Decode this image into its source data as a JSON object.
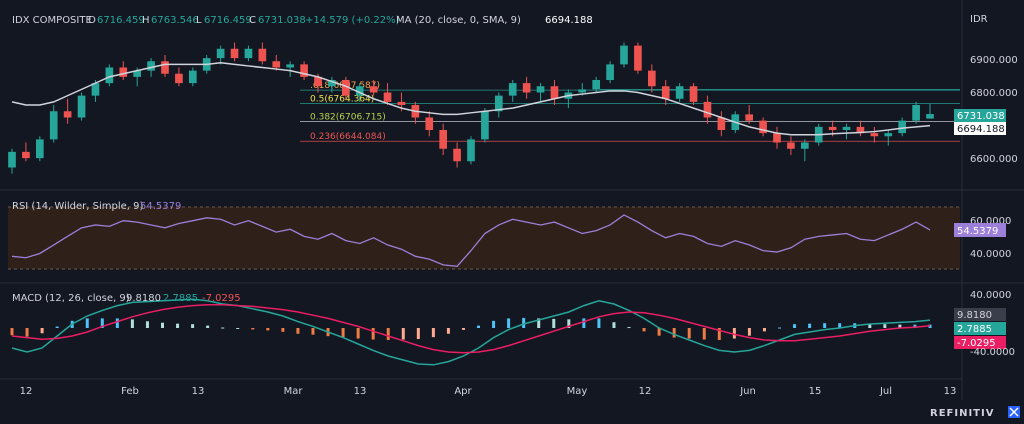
{
  "symbol": "IDX COMPOSITE",
  "ohlc": {
    "o_prefix": "O",
    "o": "6716.459",
    "h_prefix": "H",
    "h": "6763.546",
    "l_prefix": "L",
    "l": "6716.459",
    "c_prefix": "C",
    "c": "6731.038",
    "change": "+14.579 (+0.22%)"
  },
  "ma_legend": {
    "label": "MA (20, close, 0, SMA, 9)",
    "value": "6694.188"
  },
  "rsi_legend": {
    "label": "RSI (14, Wilder, Simple, 9)",
    "value": "54.5379"
  },
  "macd_legend": {
    "label": "MACD (12, 26, close, 9)",
    "v1": "9.8180",
    "v2": "2.7885",
    "v3": "-7.0295"
  },
  "currency": "IDR",
  "brand": "REFINITIV",
  "price_ticks": [
    "6900.000",
    "6800.000",
    "6600.000"
  ],
  "rsi_ticks": [
    "60.0000",
    "40.0000"
  ],
  "macd_ticks": [
    "40.0000",
    "-40.0000"
  ],
  "price_badges": {
    "close": "6731.038",
    "ma": "6694.188"
  },
  "rsi_badge": "54.5379",
  "macd_badges": {
    "v1": "9.8180",
    "v2": "2.7885",
    "v3": "-7.0295"
  },
  "fib_labels": [
    {
      "text": ".618(6807.587)",
      "color": "#f0a24a"
    },
    {
      "text": "0.5(6764.364)",
      "color": "#f0e24a"
    },
    {
      "text": "0.382(6706.715)",
      "color": "#b7d34a"
    },
    {
      "text": "0.236(6644.084)",
      "color": "#ef5350"
    }
  ],
  "x_ticks": [
    "12",
    "Feb",
    "13",
    "Mar",
    "13",
    "Apr",
    "May",
    "12",
    "Jun",
    "15",
    "Jul",
    "13"
  ],
  "colors": {
    "up": "#26a69a",
    "down": "#ef5350",
    "ma": "#d1d4dc",
    "rsi": "#9c7fd8",
    "macd": "#26a69a",
    "signal": "#e91e63",
    "bg": "#131722"
  },
  "chart_data": {
    "type": "candlestick",
    "price_range": [
      6520,
      7000
    ],
    "candles": [
      [
        6560,
        6620,
        6540,
        6610
      ],
      [
        6610,
        6640,
        6580,
        6590
      ],
      [
        6590,
        6660,
        6580,
        6650
      ],
      [
        6650,
        6760,
        6640,
        6740
      ],
      [
        6740,
        6780,
        6700,
        6720
      ],
      [
        6720,
        6800,
        6710,
        6790
      ],
      [
        6790,
        6840,
        6770,
        6830
      ],
      [
        6830,
        6890,
        6820,
        6880
      ],
      [
        6880,
        6900,
        6840,
        6850
      ],
      [
        6850,
        6880,
        6820,
        6870
      ],
      [
        6870,
        6910,
        6850,
        6900
      ],
      [
        6900,
        6920,
        6850,
        6860
      ],
      [
        6860,
        6880,
        6820,
        6830
      ],
      [
        6830,
        6880,
        6820,
        6870
      ],
      [
        6870,
        6920,
        6860,
        6910
      ],
      [
        6910,
        6950,
        6890,
        6940
      ],
      [
        6940,
        6960,
        6900,
        6910
      ],
      [
        6910,
        6950,
        6900,
        6940
      ],
      [
        6940,
        6960,
        6890,
        6900
      ],
      [
        6900,
        6920,
        6870,
        6880
      ],
      [
        6880,
        6900,
        6850,
        6890
      ],
      [
        6890,
        6900,
        6840,
        6850
      ],
      [
        6850,
        6860,
        6800,
        6820
      ],
      [
        6820,
        6850,
        6800,
        6840
      ],
      [
        6840,
        6850,
        6780,
        6790
      ],
      [
        6790,
        6830,
        6770,
        6820
      ],
      [
        6820,
        6840,
        6790,
        6800
      ],
      [
        6800,
        6830,
        6760,
        6770
      ],
      [
        6770,
        6800,
        6740,
        6760
      ],
      [
        6760,
        6770,
        6700,
        6720
      ],
      [
        6720,
        6740,
        6660,
        6680
      ],
      [
        6680,
        6700,
        6600,
        6620
      ],
      [
        6620,
        6640,
        6560,
        6580
      ],
      [
        6580,
        6660,
        6570,
        6650
      ],
      [
        6650,
        6750,
        6640,
        6740
      ],
      [
        6740,
        6800,
        6720,
        6790
      ],
      [
        6790,
        6840,
        6770,
        6830
      ],
      [
        6830,
        6850,
        6780,
        6800
      ],
      [
        6800,
        6830,
        6770,
        6820
      ],
      [
        6820,
        6840,
        6760,
        6780
      ],
      [
        6780,
        6810,
        6750,
        6800
      ],
      [
        6800,
        6830,
        6790,
        6810
      ],
      [
        6810,
        6850,
        6800,
        6840
      ],
      [
        6840,
        6900,
        6830,
        6890
      ],
      [
        6890,
        6960,
        6880,
        6950
      ],
      [
        6950,
        6960,
        6860,
        6870
      ],
      [
        6870,
        6890,
        6800,
        6820
      ],
      [
        6820,
        6840,
        6760,
        6780
      ],
      [
        6780,
        6830,
        6770,
        6820
      ],
      [
        6820,
        6830,
        6760,
        6770
      ],
      [
        6770,
        6790,
        6700,
        6720
      ],
      [
        6720,
        6740,
        6660,
        6680
      ],
      [
        6680,
        6740,
        6670,
        6730
      ],
      [
        6730,
        6760,
        6700,
        6710
      ],
      [
        6710,
        6720,
        6660,
        6670
      ],
      [
        6670,
        6690,
        6620,
        6640
      ],
      [
        6640,
        6660,
        6600,
        6620
      ],
      [
        6620,
        6650,
        6580,
        6640
      ],
      [
        6640,
        6700,
        6630,
        6690
      ],
      [
        6690,
        6710,
        6660,
        6680
      ],
      [
        6680,
        6700,
        6650,
        6690
      ],
      [
        6690,
        6710,
        6660,
        6670
      ],
      [
        6670,
        6690,
        6640,
        6660
      ],
      [
        6660,
        6680,
        6630,
        6670
      ],
      [
        6670,
        6720,
        6660,
        6710
      ],
      [
        6710,
        6770,
        6700,
        6760
      ],
      [
        6716.459,
        6763.546,
        6716.459,
        6731.038
      ]
    ],
    "ma": [
      6770,
      6760,
      6760,
      6770,
      6790,
      6810,
      6830,
      6850,
      6860,
      6870,
      6880,
      6890,
      6890,
      6890,
      6890,
      6895,
      6890,
      6885,
      6880,
      6875,
      6870,
      6860,
      6850,
      6835,
      6820,
      6800,
      6780,
      6765,
      6750,
      6740,
      6735,
      6730,
      6730,
      6735,
      6740,
      6745,
      6750,
      6760,
      6770,
      6780,
      6790,
      6795,
      6800,
      6805,
      6805,
      6800,
      6790,
      6780,
      6765,
      6750,
      6735,
      6720,
      6705,
      6690,
      6680,
      6670,
      6665,
      6665,
      6665,
      6668,
      6670,
      6672,
      6675,
      6680,
      6686,
      6690,
      6694.188
    ],
    "fib": {
      "0.618": 6807.587,
      "0.5": 6764.364,
      "0.382": 6706.715,
      "0.236": 6644.084,
      "upper": 6810,
      "mid": 6740,
      "low": 6700
    },
    "rsi": [
      36,
      35,
      38,
      44,
      50,
      56,
      58,
      57,
      61,
      60,
      58,
      56,
      59,
      61,
      63,
      62,
      58,
      61,
      57,
      53,
      55,
      50,
      48,
      52,
      47,
      45,
      49,
      44,
      41,
      36,
      34,
      30,
      29,
      40,
      52,
      58,
      62,
      60,
      58,
      60,
      56,
      52,
      54,
      58,
      65,
      60,
      54,
      49,
      52,
      50,
      45,
      43,
      47,
      44,
      40,
      39,
      42,
      48,
      50,
      51,
      52,
      48,
      47,
      51,
      55,
      60,
      54.5379
    ],
    "rsi_range": [
      25,
      72
    ],
    "macd": [
      -25,
      -30,
      -25,
      -10,
      5,
      15,
      22,
      28,
      32,
      33,
      34,
      35,
      36,
      34,
      30,
      28,
      24,
      20,
      15,
      8,
      2,
      -5,
      -12,
      -20,
      -28,
      -35,
      -40,
      -45,
      -46,
      -42,
      -35,
      -25,
      -12,
      -2,
      5,
      10,
      15,
      20,
      28,
      34,
      30,
      22,
      12,
      0,
      -8,
      -15,
      -22,
      -28,
      -30,
      -28,
      -22,
      -15,
      -8,
      -5,
      -2,
      0,
      3,
      5,
      6,
      7,
      8,
      9.818
    ],
    "signal": [
      -10,
      -12,
      -14,
      -13,
      -10,
      -5,
      2,
      8,
      14,
      19,
      23,
      26,
      28,
      29,
      29,
      28,
      27,
      25,
      23,
      20,
      16,
      12,
      7,
      2,
      -4,
      -10,
      -16,
      -22,
      -27,
      -30,
      -31,
      -30,
      -27,
      -22,
      -16,
      -10,
      -4,
      2,
      8,
      14,
      18,
      20,
      19,
      16,
      12,
      7,
      2,
      -3,
      -8,
      -12,
      -15,
      -16,
      -16,
      -14,
      -12,
      -10,
      -7,
      -4,
      -2,
      0,
      1,
      2.7885
    ],
    "macd_range": [
      -55,
      45
    ]
  }
}
